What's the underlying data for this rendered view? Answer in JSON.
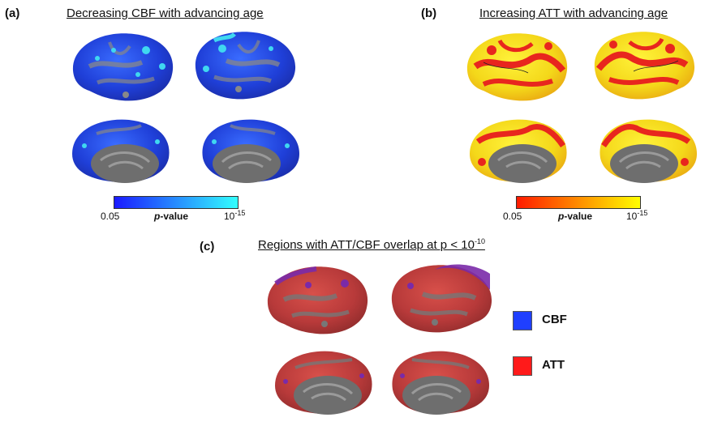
{
  "panel_a": {
    "label": "(a)",
    "title": "Decreasing CBF with advancing age",
    "colorbar": {
      "min_label": "0.05",
      "max_base": "10",
      "max_exp": "-15",
      "p_italic": "p",
      "p_rest": "-value",
      "color_low": "#1a1aff",
      "color_high": "#33ffff"
    }
  },
  "panel_b": {
    "label": "(b)",
    "title": "Increasing ATT with advancing age",
    "colorbar": {
      "min_label": "0.05",
      "max_base": "10",
      "max_exp": "-15",
      "p_italic": "p",
      "p_rest": "-value",
      "color_low": "#ff1a00",
      "color_high": "#ffff00"
    }
  },
  "panel_c": {
    "label": "(c)",
    "title_main": "Regions with ATT/CBF overlap at p < 10",
    "title_exp": "-10",
    "legend": [
      {
        "name": "CBF",
        "color": "#1f3fff"
      },
      {
        "name": "ATT",
        "color": "#ff1a1a"
      }
    ]
  },
  "brain_colors": {
    "cortex_gray": "#8a8a8a",
    "medial_gray": "#6e6e6e",
    "cbf_blue": "#1f3fd8",
    "cbf_cyan": "#3fd8f0",
    "att_red": "#e8261e",
    "att_yellow": "#f4e81a",
    "overlap_red": "#c23a3a",
    "overlap_purple": "#7a2aa8"
  }
}
